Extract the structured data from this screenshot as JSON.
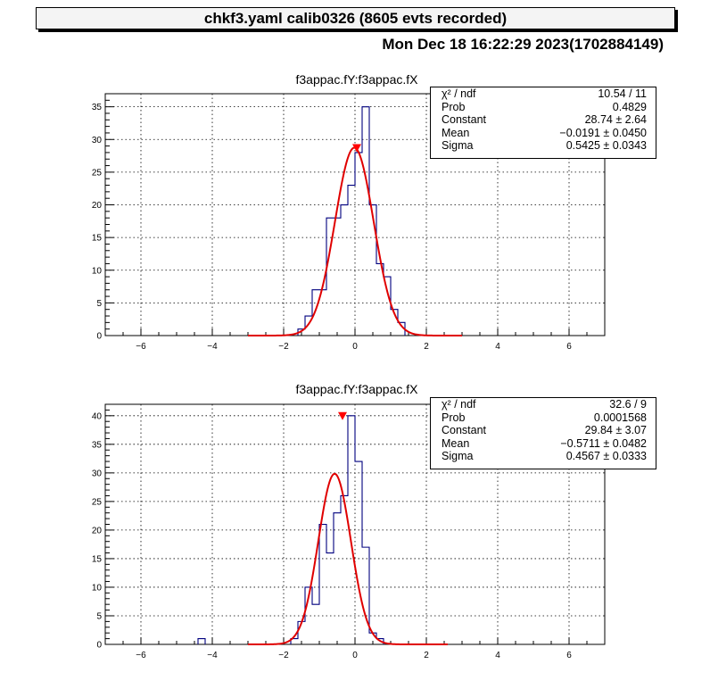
{
  "header": {
    "title": "chkf3.yaml  calib0326 (8605 evts recorded)",
    "datetime": "Mon Dec 18 16:22:29 2023(1702884149)"
  },
  "colors": {
    "histogram": "#00007f",
    "fit": "#e00000",
    "marker": "#ff0000",
    "grid": "#000000"
  },
  "chart_data": [
    {
      "type": "histogram",
      "title": "f3appac.fY:f3appac.fX",
      "xlim": [
        -7,
        7
      ],
      "ylim": [
        0,
        37
      ],
      "xticks": [
        -6,
        -4,
        -2,
        0,
        2,
        4,
        6
      ],
      "yticks": [
        0,
        5,
        10,
        15,
        20,
        25,
        30,
        35
      ],
      "grid": true,
      "bin_width": 0.2,
      "bins": [
        {
          "x": -1.6,
          "y": 1
        },
        {
          "x": -1.4,
          "y": 3
        },
        {
          "x": -1.2,
          "y": 7
        },
        {
          "x": -1.0,
          "y": 7
        },
        {
          "x": -0.8,
          "y": 18
        },
        {
          "x": -0.6,
          "y": 18
        },
        {
          "x": -0.4,
          "y": 20
        },
        {
          "x": -0.2,
          "y": 23
        },
        {
          "x": 0.0,
          "y": 28
        },
        {
          "x": 0.2,
          "y": 35
        },
        {
          "x": 0.4,
          "y": 20
        },
        {
          "x": 0.6,
          "y": 11
        },
        {
          "x": 0.8,
          "y": 9
        },
        {
          "x": 1.0,
          "y": 4
        },
        {
          "x": 1.2,
          "y": 2
        }
      ],
      "fit": {
        "constant": 28.74,
        "mean": -0.0191,
        "sigma": 0.5425,
        "range": [
          -3,
          3
        ]
      },
      "marker": {
        "x": 0.05,
        "y": 28.74
      },
      "stats": [
        {
          "label": "χ² / ndf",
          "value": "10.54 / 11"
        },
        {
          "label": "Prob",
          "value": "0.4829"
        },
        {
          "label": "Constant",
          "value": "28.74 ± 2.64"
        },
        {
          "label": "Mean",
          "value": "−0.0191 ± 0.0450"
        },
        {
          "label": "Sigma",
          "value": "0.5425 ± 0.0343"
        }
      ]
    },
    {
      "type": "histogram",
      "title": "f3appac.fY:f3appac.fX",
      "xlim": [
        -7,
        7
      ],
      "ylim": [
        0,
        42
      ],
      "xticks": [
        -6,
        -4,
        -2,
        0,
        2,
        4,
        6
      ],
      "yticks": [
        0,
        5,
        10,
        15,
        20,
        25,
        30,
        35,
        40
      ],
      "grid": true,
      "bin_width": 0.2,
      "bins": [
        {
          "x": -4.4,
          "y": 1
        },
        {
          "x": -1.8,
          "y": 1
        },
        {
          "x": -1.6,
          "y": 4
        },
        {
          "x": -1.4,
          "y": 10
        },
        {
          "x": -1.2,
          "y": 7
        },
        {
          "x": -1.0,
          "y": 21
        },
        {
          "x": -0.8,
          "y": 16
        },
        {
          "x": -0.6,
          "y": 23
        },
        {
          "x": -0.4,
          "y": 26
        },
        {
          "x": -0.2,
          "y": 40
        },
        {
          "x": 0.0,
          "y": 32
        },
        {
          "x": 0.2,
          "y": 17
        },
        {
          "x": 0.4,
          "y": 2
        },
        {
          "x": 0.6,
          "y": 1
        }
      ],
      "fit": {
        "constant": 29.84,
        "mean": -0.5711,
        "sigma": 0.4567,
        "range": [
          -3,
          2.6
        ]
      },
      "marker": {
        "x": -0.35,
        "y": 40
      },
      "stats": [
        {
          "label": "χ² / ndf",
          "value": "32.6 / 9"
        },
        {
          "label": "Prob",
          "value": "0.0001568"
        },
        {
          "label": "Constant",
          "value": "29.84 ± 3.07"
        },
        {
          "label": "Mean",
          "value": "−0.5711 ± 0.0482"
        },
        {
          "label": "Sigma",
          "value": "0.4567 ± 0.0333"
        }
      ]
    }
  ]
}
